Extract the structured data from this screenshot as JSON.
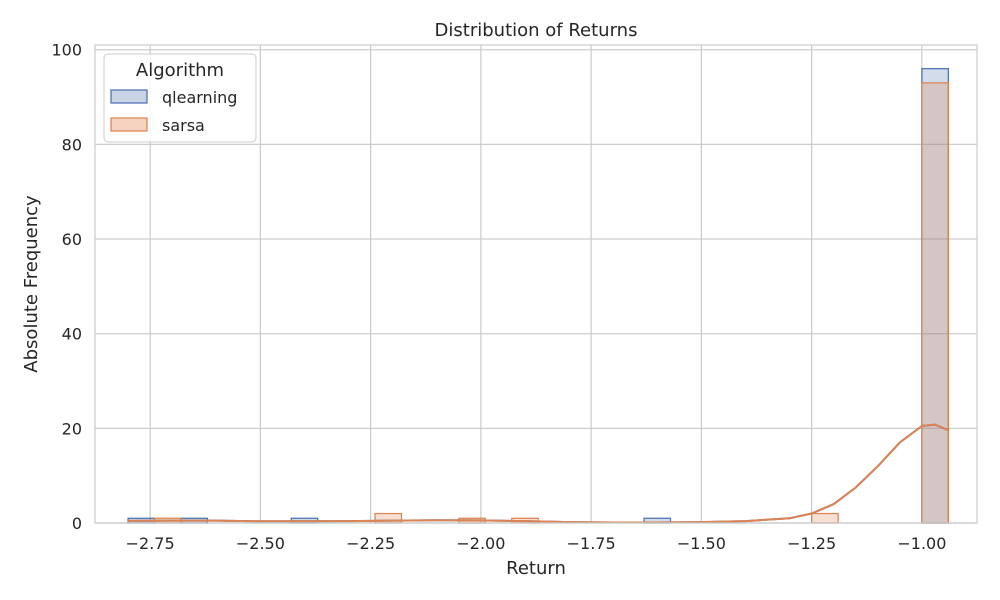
{
  "chart_data": {
    "type": "histogram",
    "title": "Distribution of Returns",
    "xlabel": "Return",
    "ylabel": "Absolute Frequency",
    "xlim": [
      -2.875,
      -0.875
    ],
    "ylim": [
      0,
      101
    ],
    "x_ticks": [
      -2.75,
      -2.5,
      -2.25,
      -2.0,
      -1.75,
      -1.5,
      -1.25,
      -1.0
    ],
    "x_tick_labels": [
      "−2.75",
      "−2.50",
      "−2.25",
      "−2.00",
      "−1.75",
      "−1.50",
      "−1.25",
      "−1.00"
    ],
    "y_ticks": [
      0,
      20,
      40,
      60,
      80,
      100
    ],
    "y_tick_labels": [
      "0",
      "20",
      "40",
      "60",
      "80",
      "100"
    ],
    "grid": true,
    "legend": {
      "title": "Algorithm",
      "placement": "top-left",
      "entries": [
        "qlearning",
        "sarsa"
      ]
    },
    "bin_width": 0.06,
    "series": [
      {
        "name": "qlearning",
        "color": "#4c72b0",
        "fill": "#c8d3e8",
        "bins": [
          {
            "x0": -2.8,
            "x1": -2.74,
            "count": 1
          },
          {
            "x0": -2.68,
            "x1": -2.62,
            "count": 1
          },
          {
            "x0": -2.43,
            "x1": -2.37,
            "count": 1
          },
          {
            "x0": -1.63,
            "x1": -1.57,
            "count": 1
          },
          {
            "x0": -1.0,
            "x1": -0.94,
            "count": 96
          }
        ],
        "kde": [
          [
            -2.8,
            0.45
          ],
          [
            -2.7,
            0.5
          ],
          [
            -2.6,
            0.5
          ],
          [
            -2.5,
            0.35
          ],
          [
            -2.4,
            0.35
          ],
          [
            -2.3,
            0.4
          ],
          [
            -2.2,
            0.5
          ],
          [
            -2.1,
            0.6
          ],
          [
            -2.0,
            0.55
          ],
          [
            -1.9,
            0.4
          ],
          [
            -1.8,
            0.2
          ],
          [
            -1.7,
            0.1
          ],
          [
            -1.6,
            0.1
          ],
          [
            -1.5,
            0.2
          ],
          [
            -1.4,
            0.4
          ],
          [
            -1.3,
            1.0
          ],
          [
            -1.25,
            2.0
          ],
          [
            -1.2,
            4.0
          ],
          [
            -1.15,
            7.5
          ],
          [
            -1.1,
            12.0
          ],
          [
            -1.05,
            17.0
          ],
          [
            -1.0,
            20.5
          ],
          [
            -0.97,
            20.8
          ],
          [
            -0.94,
            19.6
          ]
        ]
      },
      {
        "name": "sarsa",
        "color": "#dd8452",
        "fill": "#f5d3c0",
        "bins": [
          {
            "x0": -2.74,
            "x1": -2.68,
            "count": 1
          },
          {
            "x0": -2.24,
            "x1": -2.18,
            "count": 2
          },
          {
            "x0": -2.05,
            "x1": -1.99,
            "count": 1
          },
          {
            "x0": -1.93,
            "x1": -1.87,
            "count": 1
          },
          {
            "x0": -1.25,
            "x1": -1.19,
            "count": 2
          },
          {
            "x0": -1.0,
            "x1": -0.94,
            "count": 93
          }
        ],
        "kde": [
          [
            -2.8,
            0.45
          ],
          [
            -2.7,
            0.5
          ],
          [
            -2.6,
            0.5
          ],
          [
            -2.5,
            0.35
          ],
          [
            -2.4,
            0.35
          ],
          [
            -2.3,
            0.4
          ],
          [
            -2.2,
            0.5
          ],
          [
            -2.1,
            0.6
          ],
          [
            -2.0,
            0.55
          ],
          [
            -1.9,
            0.4
          ],
          [
            -1.8,
            0.2
          ],
          [
            -1.7,
            0.1
          ],
          [
            -1.6,
            0.1
          ],
          [
            -1.5,
            0.2
          ],
          [
            -1.4,
            0.4
          ],
          [
            -1.3,
            1.0
          ],
          [
            -1.25,
            2.0
          ],
          [
            -1.2,
            4.0
          ],
          [
            -1.15,
            7.5
          ],
          [
            -1.1,
            12.0
          ],
          [
            -1.05,
            17.0
          ],
          [
            -1.0,
            20.5
          ],
          [
            -0.97,
            20.8
          ],
          [
            -0.94,
            19.6
          ]
        ]
      }
    ]
  }
}
